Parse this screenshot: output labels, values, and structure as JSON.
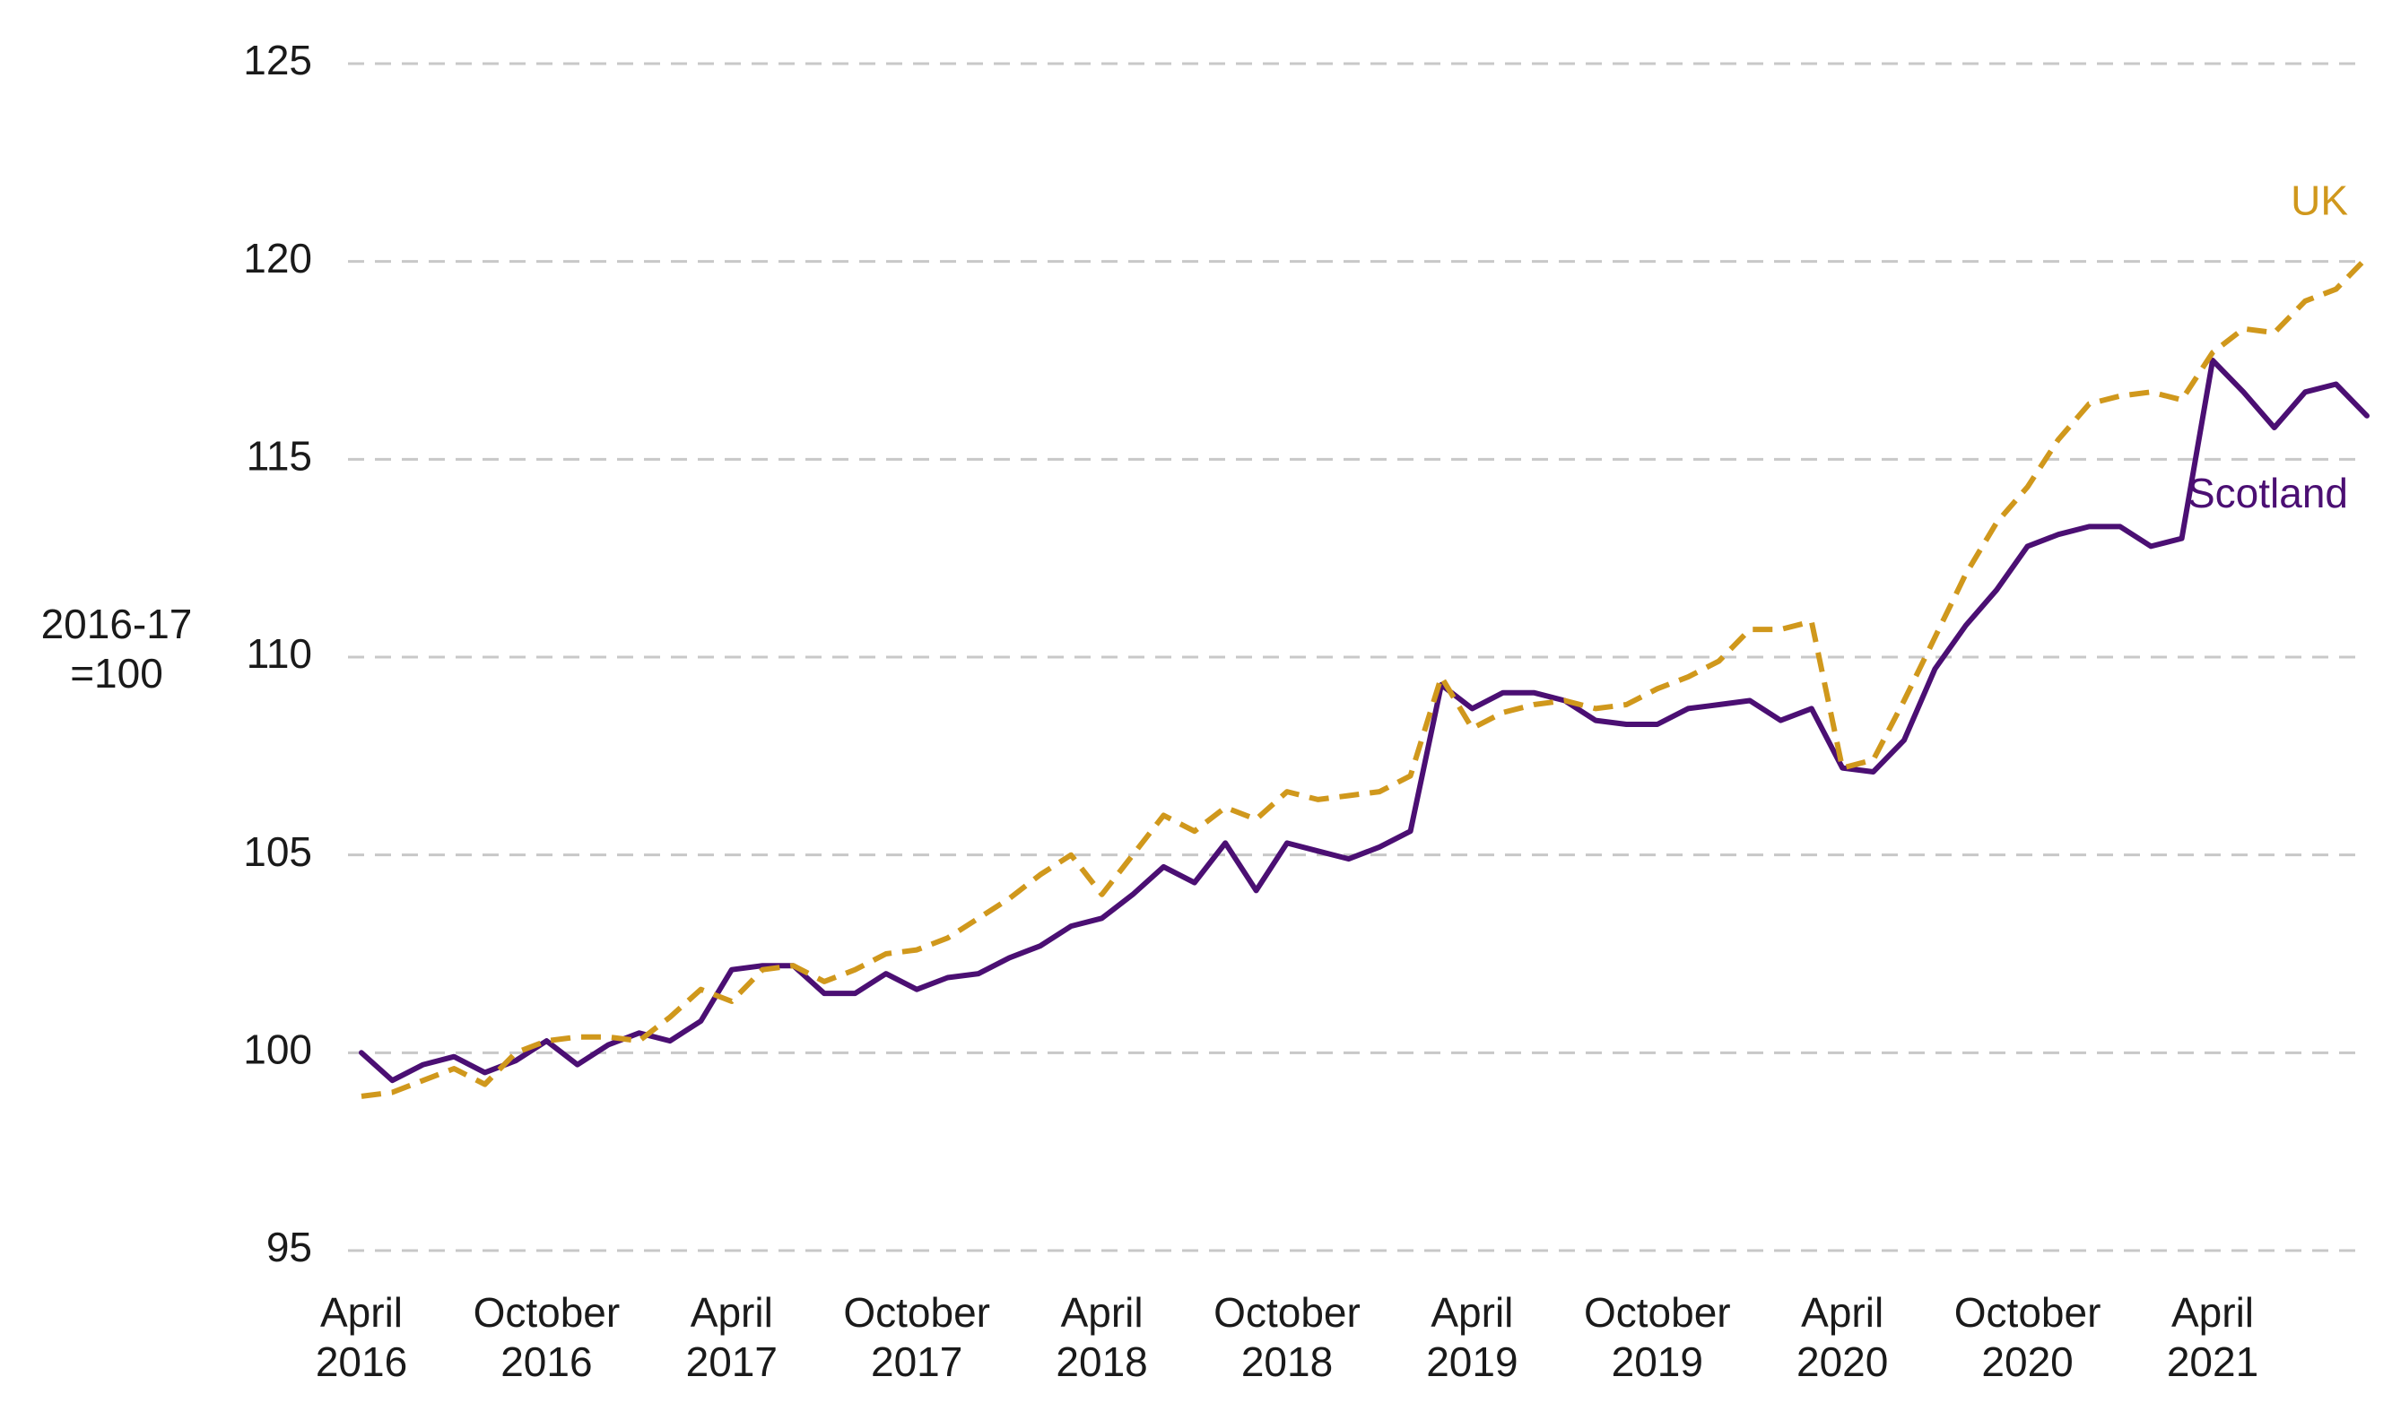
{
  "chart_data": {
    "type": "line",
    "title": "",
    "ylabel": "2016-17\n=100",
    "ylim": [
      95,
      125
    ],
    "yticks": [
      95,
      100,
      105,
      110,
      115,
      120,
      125
    ],
    "grid": true,
    "xticks": [
      {
        "index": 0,
        "label": [
          "April",
          "2016"
        ]
      },
      {
        "index": 6,
        "label": [
          "October",
          "2016"
        ]
      },
      {
        "index": 12,
        "label": [
          "April",
          "2017"
        ]
      },
      {
        "index": 18,
        "label": [
          "October",
          "2017"
        ]
      },
      {
        "index": 24,
        "label": [
          "April",
          "2018"
        ]
      },
      {
        "index": 30,
        "label": [
          "October",
          "2018"
        ]
      },
      {
        "index": 36,
        "label": [
          "April",
          "2019"
        ]
      },
      {
        "index": 42,
        "label": [
          "October",
          "2019"
        ]
      },
      {
        "index": 48,
        "label": [
          "April",
          "2020"
        ]
      },
      {
        "index": 54,
        "label": [
          "October",
          "2020"
        ]
      },
      {
        "index": 60,
        "label": [
          "April",
          "2021"
        ]
      }
    ],
    "series": [
      {
        "name": "Scotland",
        "color": "#4b0f73",
        "style": "solid",
        "values": [
          100.0,
          99.3,
          99.7,
          99.9,
          99.5,
          99.8,
          100.3,
          99.7,
          100.2,
          100.5,
          100.3,
          100.8,
          102.1,
          102.2,
          102.2,
          101.5,
          101.5,
          102.0,
          101.6,
          101.9,
          102.0,
          102.4,
          102.7,
          103.2,
          103.4,
          104.0,
          104.7,
          104.3,
          105.3,
          104.1,
          105.3,
          105.1,
          104.9,
          105.2,
          105.6,
          109.3,
          108.7,
          109.1,
          109.1,
          108.9,
          108.4,
          108.3,
          108.3,
          108.7,
          108.8,
          108.9,
          108.4,
          108.7,
          107.2,
          107.1,
          107.9,
          109.7,
          110.8,
          111.7,
          112.8,
          113.1,
          113.3,
          113.3,
          112.8,
          113.0,
          117.5,
          116.7,
          115.8,
          116.7,
          116.9,
          116.1
        ]
      },
      {
        "name": "UK",
        "color": "#d0981c",
        "style": "dashed",
        "values": [
          98.9,
          99.0,
          99.3,
          99.6,
          99.2,
          100.0,
          100.3,
          100.4,
          100.4,
          100.3,
          100.9,
          101.6,
          101.3,
          102.1,
          102.2,
          101.8,
          102.1,
          102.5,
          102.6,
          102.9,
          103.4,
          103.9,
          104.5,
          105.0,
          104.0,
          105.0,
          106.0,
          105.6,
          106.2,
          105.9,
          106.6,
          106.4,
          106.5,
          106.6,
          107.0,
          109.5,
          108.2,
          108.6,
          108.8,
          108.9,
          108.7,
          108.8,
          109.2,
          109.5,
          109.9,
          110.7,
          110.7,
          110.9,
          107.2,
          107.4,
          108.9,
          110.5,
          112.1,
          113.4,
          114.3,
          115.5,
          116.4,
          116.6,
          116.7,
          116.5,
          117.7,
          118.3,
          118.2,
          119.0,
          119.3,
          120.1
        ]
      }
    ],
    "annotations": [
      {
        "text": "UK",
        "series": "UK"
      },
      {
        "text": "Scotland",
        "series": "Scotland"
      }
    ]
  }
}
